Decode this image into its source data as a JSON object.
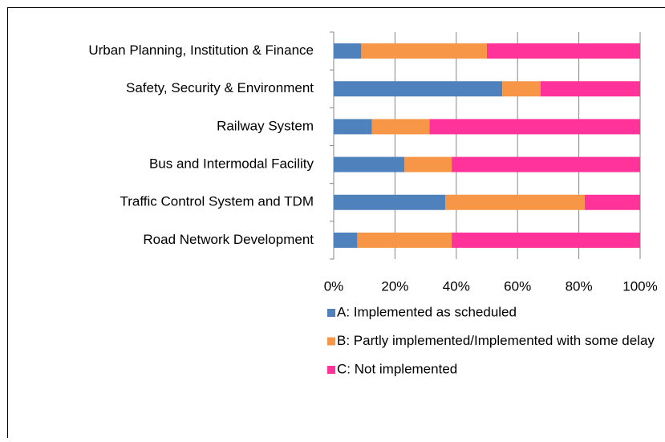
{
  "chart_data": {
    "type": "bar",
    "orientation": "horizontal",
    "stacked": true,
    "categories": [
      "Urban Planning, Institution & Finance",
      "Safety, Security & Environment",
      "Railway System",
      "Bus and Intermodal Facility",
      "Traffic Control System and TDM",
      "Road Network Development"
    ],
    "series": [
      {
        "name": "A: Implemented as scheduled",
        "color": "#4f81bd",
        "values": [
          9,
          55,
          12.5,
          23.1,
          36.4,
          7.7
        ]
      },
      {
        "name": "B: Partly implemented/Implemented with some delay",
        "color": "#f79646",
        "values": [
          41,
          12.5,
          18.75,
          15.4,
          45.5,
          30.8
        ]
      },
      {
        "name": "C: Not implemented",
        "color": "#ff3399",
        "values": [
          50,
          32.5,
          68.75,
          61.5,
          18.1,
          61.5
        ]
      }
    ],
    "xlim": [
      0,
      100
    ],
    "xticks": [
      {
        "value": 0,
        "label": "0%"
      },
      {
        "value": 20,
        "label": "20%"
      },
      {
        "value": 40,
        "label": "40%"
      },
      {
        "value": 60,
        "label": "60%"
      },
      {
        "value": 80,
        "label": "80%"
      },
      {
        "value": 100,
        "label": "100%"
      }
    ],
    "grid": true,
    "legend": "bottom"
  }
}
